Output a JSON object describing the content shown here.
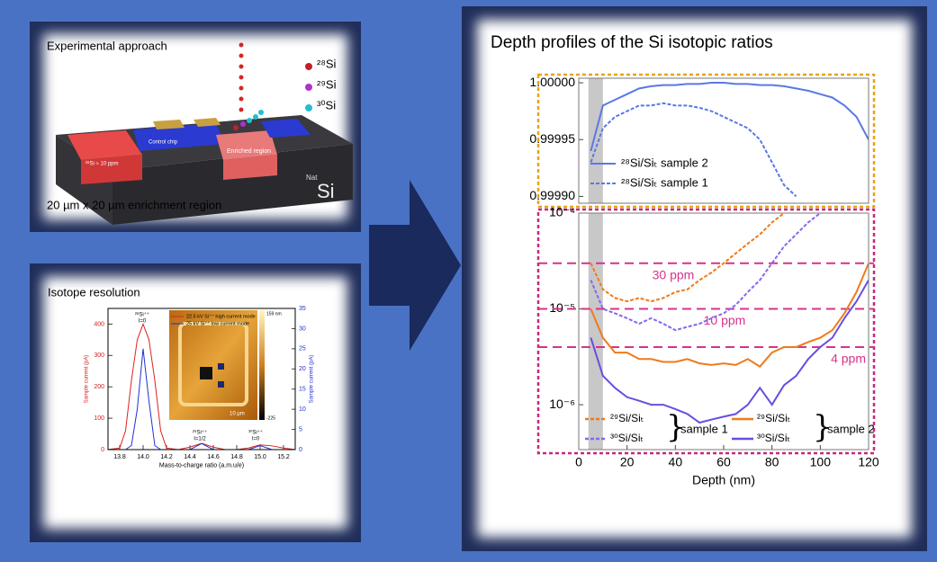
{
  "title": "Depth profiles of the Si isotopic ratios",
  "panels": {
    "experimental_approach": {
      "title": "Experimental approach",
      "isotopes": [
        "²⁸Si",
        "²⁹Si",
        "³⁰Si"
      ],
      "labels": {
        "implant": "²⁸Si ≈ 10 ppm",
        "control": "Control chip",
        "enriched": "Enriched region"
      },
      "substrate": {
        "superscript": "Nat",
        "element": "Si"
      },
      "caption": "20 µm x 20 µm enrichment region"
    },
    "isotope_resolution": {
      "title": "Isotope resolution",
      "inset_labels": [
        "159 nm",
        "-225",
        "10 µm"
      ]
    }
  },
  "chart_data": [
    {
      "type": "line",
      "x": [
        13.7,
        13.8,
        13.85,
        13.9,
        13.95,
        14.0,
        14.05,
        14.1,
        14.15,
        14.2,
        14.3,
        14.4,
        14.5,
        14.6,
        14.7,
        14.8,
        14.9,
        15.0,
        15.1,
        15.2,
        15.3
      ],
      "xlim": [
        13.7,
        15.3
      ],
      "xticks": [
        13.8,
        {
          "value": 14,
          "label": "14.0"
        },
        14.2,
        14.4,
        14.6,
        14.8,
        {
          "value": 15,
          "label": "15.0"
        },
        15.2
      ],
      "ylim": [
        0,
        450
      ],
      "yticks": [
        0,
        100,
        200,
        300,
        400
      ],
      "y2lim": [
        0,
        35
      ],
      "y2ticks": [
        0,
        5,
        10,
        15,
        20,
        25,
        30,
        35
      ],
      "xlabel": "Mass-to-charge ratio (a.m.u/e)",
      "ylabel": "Sample current (pA)",
      "y2label": "Sample current (pA)",
      "series": [
        {
          "name": "22.5 kV Si⁺⁺ high current mode",
          "color": "#e02020",
          "linestyle": "solid",
          "values": [
            0,
            5,
            60,
            220,
            350,
            400,
            350,
            220,
            60,
            5,
            0,
            8,
            20,
            8,
            0,
            0,
            5,
            15,
            12,
            5,
            0
          ]
        },
        {
          "name": "25 kV Si⁺⁺ low current mode",
          "color": "#2030d0",
          "linestyle": "solid",
          "axis": "y2",
          "values": [
            0,
            0,
            0,
            1,
            10,
            25,
            12,
            1,
            0,
            0,
            0,
            0,
            1.5,
            0,
            0,
            0,
            0,
            1,
            0,
            0,
            0
          ]
        }
      ],
      "annotations": [
        [
          "²⁸Si⁺⁺",
          "I=0"
        ],
        [
          "²⁹Si⁺⁺",
          "I=1/2"
        ],
        [
          "³⁰Si⁺⁺",
          "I=0"
        ]
      ]
    },
    {
      "type": "line",
      "x": [
        5,
        10,
        15,
        20,
        25,
        30,
        35,
        40,
        45,
        50,
        55,
        60,
        65,
        70,
        75,
        80,
        85,
        90,
        95,
        100,
        105,
        110,
        115,
        120
      ],
      "xlim": [
        0,
        120
      ],
      "ylim": [
        0.999894,
        1.000004
      ],
      "yticks": [
        {
          "value": 0.9999,
          "label": "0.99990"
        },
        0.99995,
        {
          "value": 1,
          "label": "1.00000"
        }
      ],
      "shaded_region": [
        4,
        10
      ],
      "shade_color": "#c8c8c8",
      "frame_color": "#e8a21a",
      "series": [
        {
          "name": "²⁸Si/Siₜ sample 2",
          "color": "#5a78e6",
          "linestyle": "solid",
          "values": [
            0.99994,
            0.99998,
            0.999985,
            0.99999,
            0.999995,
            0.999997,
            0.999998,
            0.999998,
            0.999999,
            0.999999,
            1.0,
            1.0,
            0.999999,
            0.999999,
            0.999998,
            0.999998,
            0.999997,
            0.999995,
            0.999993,
            0.99999,
            0.999987,
            0.99998,
            0.99997,
            0.99995
          ]
        },
        {
          "name": "²⁸Si/Siₜ sample 1",
          "color": "#5a78e6",
          "linestyle": "dashed",
          "values": [
            0.99993,
            0.99996,
            0.99997,
            0.999975,
            0.99998,
            0.99998,
            0.999982,
            0.99998,
            0.99998,
            0.999978,
            0.999975,
            0.99997,
            0.999965,
            0.99996,
            0.99995,
            0.99993,
            0.99991,
            0.9999,
            null,
            null,
            null,
            null,
            null,
            null
          ]
        }
      ]
    },
    {
      "type": "line",
      "log_y": true,
      "x": [
        5,
        10,
        15,
        20,
        25,
        30,
        35,
        40,
        45,
        50,
        55,
        60,
        65,
        70,
        75,
        80,
        85,
        90,
        95,
        100,
        105,
        110,
        115,
        120
      ],
      "xlim": [
        0,
        120
      ],
      "xticks": [
        0,
        20,
        40,
        60,
        80,
        100,
        120
      ],
      "xlabel": "Depth (nm)",
      "ylim": [
        3.4e-07,
        0.0001
      ],
      "yticks": [
        {
          "value": 1e-06,
          "label": "10⁻⁶"
        },
        {
          "value": 1e-05,
          "label": "10⁻⁵"
        },
        {
          "value": 0.0001,
          "label": "10⁻⁴"
        }
      ],
      "shaded_region": [
        4,
        10
      ],
      "shade_color": "#c8c8c8",
      "frame_color": "#c8287a",
      "reference_lines": [
        {
          "value": 3e-05,
          "label": "30 ppm"
        },
        {
          "value": 1e-05,
          "label": "10 ppm"
        },
        {
          "value": 4e-06,
          "label": "4 ppm"
        }
      ],
      "reference_color": "#d6338a",
      "legend_groups": [
        "sample 1",
        "sample 2"
      ],
      "series": [
        {
          "name": "²⁹Si/Siₜ",
          "color": "#f07a1a",
          "linestyle": "dashed",
          "values": [
            3e-05,
            1.6e-05,
            1.3e-05,
            1.2e-05,
            1.3e-05,
            1.2e-05,
            1.3e-05,
            1.5e-05,
            1.6e-05,
            2e-05,
            2.4e-05,
            3e-05,
            3.8e-05,
            4.8e-05,
            6e-05,
            8e-05,
            0.0001,
            null,
            null,
            null,
            null,
            null,
            null,
            null
          ]
        },
        {
          "name": "³⁰Si/Siₜ",
          "color": "#8866ee",
          "linestyle": "dashed",
          "values": [
            2e-05,
            1e-05,
            9e-06,
            8e-06,
            7e-06,
            8e-06,
            7e-06,
            6e-06,
            6.5e-06,
            7e-06,
            8e-06,
            9e-06,
            1.1e-05,
            1.5e-05,
            2e-05,
            3e-05,
            4.5e-05,
            6e-05,
            8e-05,
            0.0001,
            null,
            null,
            null,
            null
          ]
        },
        {
          "name": "²⁹Si/Siₜ",
          "color": "#f07a1a",
          "linestyle": "solid",
          "values": [
            1e-05,
            5e-06,
            3.5e-06,
            3.5e-06,
            3e-06,
            3e-06,
            2.8e-06,
            2.8e-06,
            3e-06,
            2.7e-06,
            2.6e-06,
            2.7e-06,
            2.6e-06,
            3e-06,
            2.5e-06,
            3.5e-06,
            4e-06,
            4e-06,
            4.5e-06,
            5e-06,
            6e-06,
            9e-06,
            1.5e-05,
            3e-05
          ]
        },
        {
          "name": "³⁰Si/Siₜ",
          "color": "#6a4de0",
          "linestyle": "solid",
          "values": [
            5e-06,
            2e-06,
            1.5e-06,
            1.2e-06,
            1.1e-06,
            1e-06,
            1e-06,
            9e-07,
            8e-07,
            6.5e-07,
            7e-07,
            7.5e-07,
            8e-07,
            1e-06,
            1.5e-06,
            1e-06,
            1.6e-06,
            2e-06,
            3e-06,
            4e-06,
            5e-06,
            8e-06,
            1.2e-05,
            2e-05
          ]
        }
      ]
    }
  ]
}
